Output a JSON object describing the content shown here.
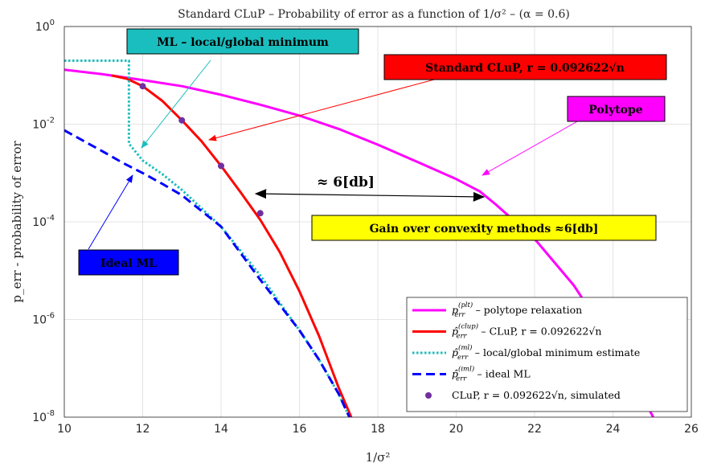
{
  "chart_data": {
    "type": "line",
    "title": "Standard CLuP – Probability of error as a function of 1/σ² – (α = 0.6)",
    "xlabel": "1/σ²",
    "ylabel": "p_err - probability of error",
    "xlim": [
      10,
      26
    ],
    "ylim": [
      1e-08,
      1
    ],
    "yscale": "log",
    "grid": true,
    "x_ticks": [
      10,
      12,
      14,
      16,
      18,
      20,
      22,
      24,
      26
    ],
    "y_ticks": [
      {
        "value": 1.0,
        "base": "10",
        "exp": "0"
      },
      {
        "value": 0.01,
        "base": "10",
        "exp": "-2"
      },
      {
        "value": 0.0001,
        "base": "10",
        "exp": "-4"
      },
      {
        "value": 1e-06,
        "base": "10",
        "exp": "-6"
      },
      {
        "value": 1e-08,
        "base": "10",
        "exp": "-8"
      }
    ],
    "legend_position": "bottom-right",
    "series": [
      {
        "name": "p_err^(plt) – polytope relaxation",
        "color": "#ff00ff",
        "style": "solid",
        "x": [
          10,
          11,
          12,
          13,
          14,
          15,
          16,
          17,
          18,
          19,
          20,
          20.6,
          21,
          22,
          23,
          24,
          24.5,
          25,
          25.5
        ],
        "y": [
          0.13,
          0.105,
          0.08,
          0.06,
          0.04,
          0.025,
          0.015,
          0.008,
          0.0038,
          0.0017,
          0.00075,
          0.00042,
          0.00023,
          4.5e-05,
          5e-06,
          3e-07,
          6e-08,
          1.1e-08,
          1.5e-09
        ]
      },
      {
        "name": "p̂_err^(clup) – CLuP, r = 0.092622√n",
        "color": "#ff0000",
        "style": "solid",
        "x": [
          11.2,
          11.6,
          12,
          12.5,
          13,
          13.5,
          14,
          14.5,
          15,
          15.5,
          16,
          16.5,
          17,
          17.3,
          17.6
        ],
        "y": [
          0.1,
          0.085,
          0.06,
          0.03,
          0.012,
          0.0045,
          0.0014,
          0.0004,
          0.00011,
          2.4e-05,
          3.8e-06,
          4.6e-07,
          4e-08,
          1.1e-08,
          2.5e-09
        ]
      },
      {
        "name": "p̂_err^(ml) – local/global minimum estimate",
        "color": "#1abebe",
        "style": "dotted",
        "x": [
          10,
          11.65,
          11.65,
          12,
          12.5,
          13,
          14,
          15,
          16,
          16.5,
          17,
          17.3
        ],
        "y": [
          0.2,
          0.2,
          0.004,
          0.0018,
          0.00095,
          0.00045,
          8e-05,
          8e-06,
          6e-07,
          1.5e-07,
          3e-08,
          9e-09
        ]
      },
      {
        "name": "p̂_err^(iml) – ideal ML",
        "color": "#0000ff",
        "style": "dashed",
        "x": [
          10,
          10.5,
          11,
          11.5,
          12,
          12.5,
          13,
          14,
          15,
          16,
          16.5,
          17,
          17.3
        ],
        "y": [
          0.0075,
          0.0045,
          0.0027,
          0.0016,
          0.001,
          0.0006,
          0.00035,
          8e-05,
          6.5e-06,
          6e-07,
          1.5e-07,
          3e-08,
          9e-09
        ]
      },
      {
        "name": "CLuP, r = 0.092622√n, simulated",
        "color": "#7030a0",
        "style": "markers",
        "x": [
          12,
          13,
          14,
          15
        ],
        "y": [
          0.06,
          0.012,
          0.0014,
          0.00015
        ]
      }
    ],
    "annotations": {
      "ml_box": "ML – local/global minimum",
      "clup_box_prefix": "Standard CLuP, ",
      "clup_box_formula": "r = 0.092622√n",
      "polytope_box": "Polytope",
      "gain_db": "≈ 6[db]",
      "gain_box": "Gain over convexity methods ≈6[db]",
      "ideal_box": "Ideal ML"
    },
    "legend": [
      {
        "main": "p",
        "sub": "err",
        "sup": "(plt)",
        "text": " – polytope relaxation"
      },
      {
        "main": "p̂",
        "sub": "err",
        "sup": "(clup)",
        "text": " – CLuP, r = 0.092622√n"
      },
      {
        "main": "p̂",
        "sub": "err",
        "sup": "(ml)",
        "text": " – local/global minimum estimate"
      },
      {
        "main": "p̂",
        "sub": "err",
        "sup": "(iml)",
        "text": " – ideal ML"
      },
      {
        "main": "",
        "sub": "",
        "sup": "",
        "text": "CLuP, r = 0.092622√n, simulated"
      }
    ]
  }
}
